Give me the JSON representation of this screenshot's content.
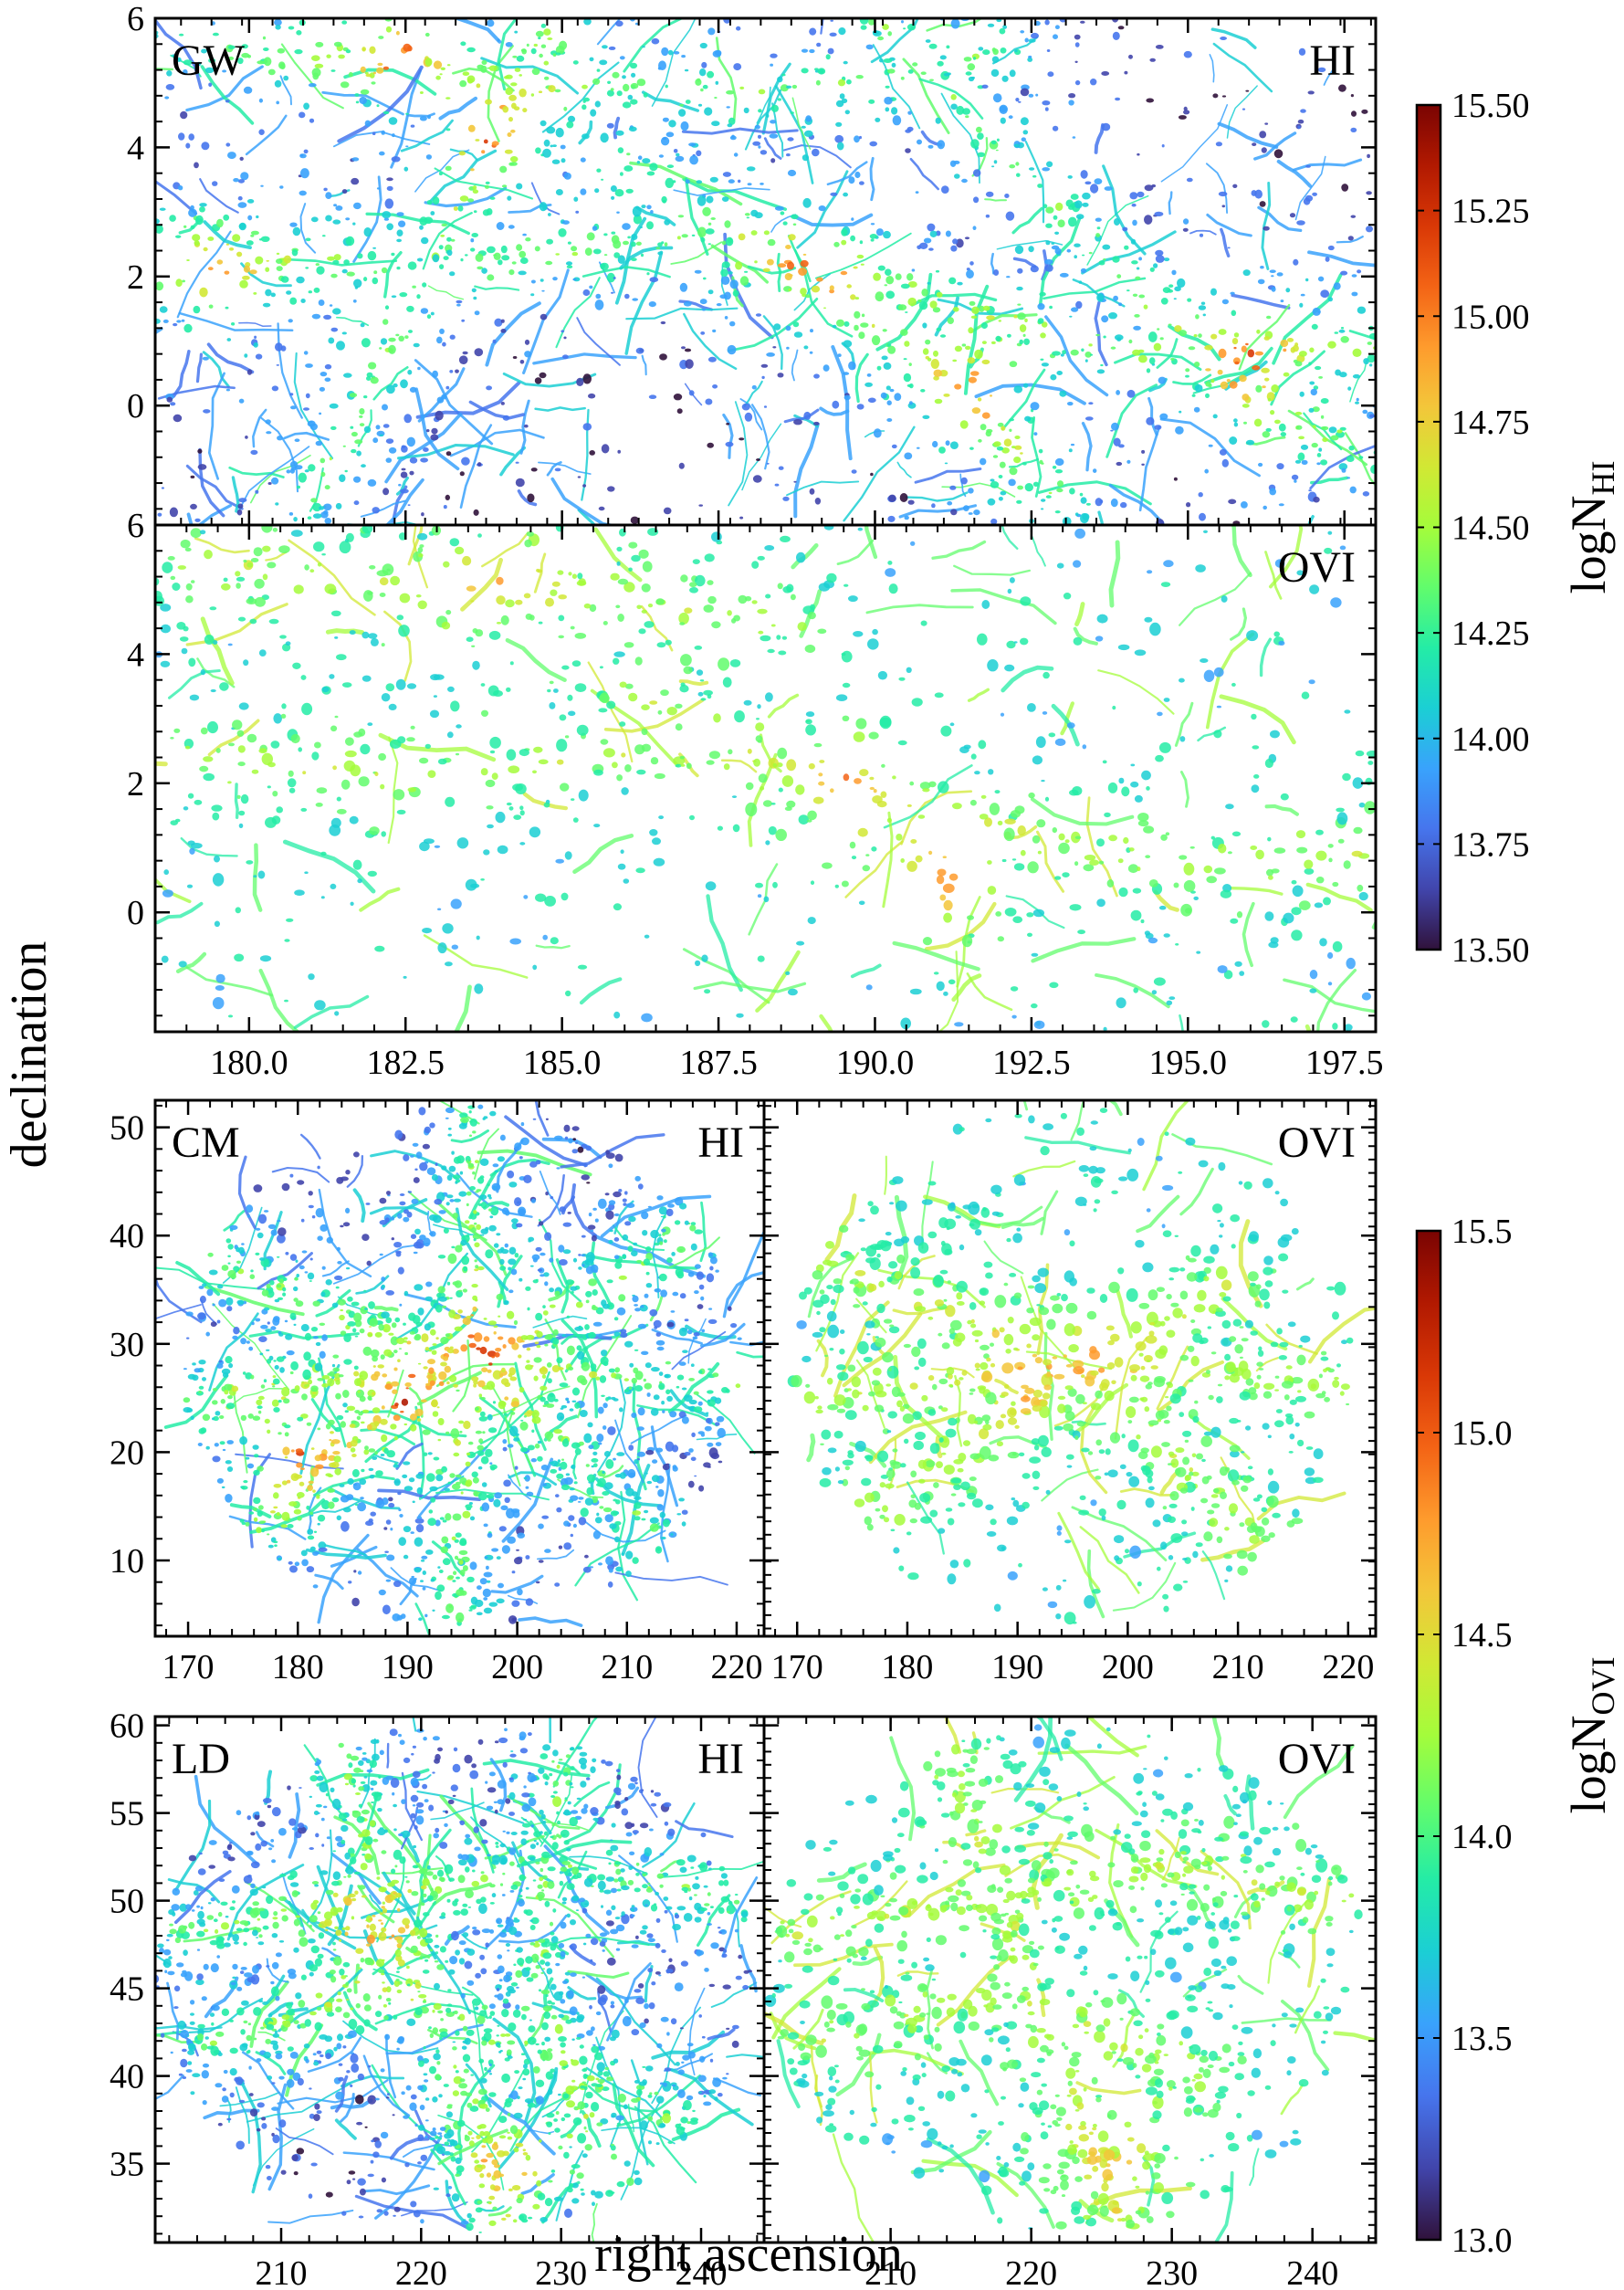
{
  "figure": {
    "ylabel": "declination",
    "xlabel": "right ascension"
  },
  "colorbars": [
    {
      "id": "hi",
      "label_main": "logN",
      "label_sub": "HI",
      "range": [
        13.5,
        15.5
      ],
      "ticks": [
        "13.50",
        "13.75",
        "14.00",
        "14.25",
        "14.50",
        "14.75",
        "15.00",
        "15.25",
        "15.50"
      ],
      "tick_values": [
        13.5,
        13.75,
        14.0,
        14.25,
        14.5,
        14.75,
        15.0,
        15.25,
        15.5
      ]
    },
    {
      "id": "ovi",
      "label_main": "logN",
      "label_sub": "OVI",
      "range": [
        13.0,
        15.5
      ],
      "ticks": [
        "13.0",
        "13.5",
        "14.0",
        "14.5",
        "15.0",
        "15.5"
      ],
      "tick_values": [
        13.0,
        13.5,
        14.0,
        14.5,
        15.0,
        15.5
      ]
    }
  ],
  "colormap": [
    "#30123b",
    "#4145ab",
    "#4675ed",
    "#39a2fc",
    "#1bcfd4",
    "#24eca6",
    "#61fc6c",
    "#a4fc3b",
    "#d1e834",
    "#f3c63a",
    "#fe9b2d",
    "#f36315",
    "#d93806",
    "#b11901",
    "#7a0402"
  ],
  "chart_data": [
    {
      "type": "heatmap",
      "panel": "GW-HI",
      "labels": [
        "GW",
        "HI"
      ],
      "colorbar": "hi",
      "xlim": [
        178.5,
        198.0
      ],
      "ylim": [
        -1.85,
        6.0
      ],
      "xticks": [],
      "yticks": [
        "6",
        "4",
        "2",
        "0"
      ],
      "ytick_values": [
        6,
        4,
        2,
        0
      ],
      "filaments": [
        [
          [
            178.5,
            2.4
          ],
          [
            183.0,
            2.1
          ],
          [
            187.0,
            2.6
          ],
          [
            190.0,
            1.9
          ],
          [
            194.0,
            0.8
          ],
          [
            198.0,
            0.9
          ]
        ],
        [
          [
            179.0,
            5.6
          ],
          [
            184.0,
            5.0
          ],
          [
            188.5,
            4.8
          ],
          [
            192.0,
            5.5
          ]
        ],
        [
          [
            181.0,
            -1.5
          ],
          [
            182.5,
            1.5
          ],
          [
            184.0,
            4.5
          ],
          [
            185.0,
            6.0
          ]
        ],
        [
          [
            186.0,
            3.6
          ],
          [
            189.0,
            2.0
          ],
          [
            191.5,
            0.2
          ],
          [
            193.0,
            -1.6
          ]
        ],
        [
          [
            190.0,
            6.0
          ],
          [
            193.0,
            3.0
          ],
          [
            196.0,
            0.0
          ],
          [
            198.0,
            -0.8
          ]
        ]
      ],
      "hotspots": [
        [
          184.0,
          4.2
        ],
        [
          189.0,
          2.2
        ],
        [
          191.5,
          0.4
        ],
        [
          179.5,
          1.9
        ],
        [
          196.0,
          0.7
        ],
        [
          182.5,
          5.5
        ]
      ]
    },
    {
      "type": "heatmap",
      "panel": "GW-OVI",
      "labels": [
        "OVI"
      ],
      "colorbar": "hi",
      "xlim": [
        178.5,
        198.0
      ],
      "ylim": [
        -1.85,
        6.0
      ],
      "xticks": [
        "180.0",
        "182.5",
        "185.0",
        "187.5",
        "190.0",
        "192.5",
        "195.0",
        "197.5"
      ],
      "xtick_values": [
        180.0,
        182.5,
        185.0,
        187.5,
        190.0,
        192.5,
        195.0,
        197.5
      ],
      "yticks": [
        "6",
        "4",
        "2",
        "0"
      ],
      "ytick_values": [
        6,
        4,
        2,
        0
      ],
      "filaments": [
        [
          [
            178.5,
            2.4
          ],
          [
            183.0,
            2.1
          ],
          [
            187.0,
            2.6
          ],
          [
            190.0,
            1.9
          ],
          [
            194.0,
            0.8
          ],
          [
            198.0,
            0.9
          ]
        ],
        [
          [
            179.0,
            5.4
          ],
          [
            184.0,
            5.0
          ],
          [
            188.5,
            4.6
          ]
        ],
        [
          [
            186.0,
            3.4
          ],
          [
            189.0,
            2.0
          ],
          [
            191.5,
            0.4
          ]
        ]
      ],
      "hotspots": [
        [
          184.0,
          5.2
        ],
        [
          191.0,
          0.4
        ],
        [
          189.5,
          2.2
        ]
      ]
    },
    {
      "type": "heatmap",
      "panel": "CM-HI",
      "labels": [
        "CM",
        "HI"
      ],
      "colorbar": "ovi",
      "xlim": [
        167.0,
        222.5
      ],
      "ylim": [
        3.0,
        52.5
      ],
      "xticks": [
        "170",
        "180",
        "190",
        "200",
        "210",
        "220"
      ],
      "xtick_values": [
        170,
        180,
        190,
        200,
        210,
        220
      ],
      "yticks": [
        "50",
        "40",
        "30",
        "20",
        "10"
      ],
      "ytick_values": [
        50,
        40,
        30,
        20,
        10
      ],
      "disc": {
        "center": [
          195.0,
          28.0
        ],
        "radius": [
          25.5,
          24.0
        ]
      },
      "filaments": [
        [
          [
            172.0,
            38.0
          ],
          [
            185.0,
            32.0
          ],
          [
            196.0,
            28.0
          ],
          [
            210.0,
            36.0
          ],
          [
            220.0,
            44.0
          ]
        ],
        [
          [
            175.0,
            12.0
          ],
          [
            186.0,
            22.0
          ],
          [
            196.0,
            28.0
          ],
          [
            205.0,
            20.0
          ],
          [
            214.0,
            10.0
          ]
        ],
        [
          [
            196.0,
            50.0
          ],
          [
            196.0,
            28.0
          ],
          [
            194.0,
            6.0
          ]
        ],
        [
          [
            170.0,
            25.0
          ],
          [
            196.0,
            28.0
          ],
          [
            221.0,
            26.0
          ]
        ]
      ],
      "hotspots": [
        [
          197.0,
          29.5
        ],
        [
          190.0,
          25.0
        ],
        [
          180.0,
          20.0
        ]
      ]
    },
    {
      "type": "heatmap",
      "panel": "CM-OVI",
      "labels": [
        "OVI"
      ],
      "colorbar": "ovi",
      "xlim": [
        167.0,
        222.5
      ],
      "ylim": [
        3.0,
        52.5
      ],
      "xticks": [
        "170",
        "180",
        "190",
        "200",
        "210",
        "220"
      ],
      "xtick_values": [
        170,
        180,
        190,
        200,
        210,
        220
      ],
      "yticks": [],
      "disc": {
        "center": [
          195.0,
          28.0
        ],
        "radius": [
          25.5,
          24.0
        ]
      },
      "filaments": [
        [
          [
            172.0,
            38.0
          ],
          [
            185.0,
            32.0
          ],
          [
            196.0,
            28.0
          ],
          [
            210.0,
            36.0
          ]
        ],
        [
          [
            176.0,
            14.0
          ],
          [
            196.0,
            28.0
          ],
          [
            212.0,
            12.0
          ]
        ],
        [
          [
            170.0,
            25.0
          ],
          [
            196.0,
            28.0
          ],
          [
            221.0,
            26.0
          ]
        ]
      ],
      "hotspots": [
        [
          197.0,
          29.5
        ],
        [
          191.0,
          27.0
        ]
      ]
    },
    {
      "type": "heatmap",
      "panel": "LD-HI",
      "labels": [
        "LD",
        "HI"
      ],
      "colorbar": "ovi",
      "xlim": [
        201.0,
        244.5
      ],
      "ylim": [
        30.5,
        60.5
      ],
      "xticks": [
        "210",
        "220",
        "230",
        "240"
      ],
      "xtick_values": [
        210,
        220,
        230,
        240
      ],
      "yticks": [
        "60",
        "55",
        "50",
        "45",
        "40",
        "35"
      ],
      "ytick_values": [
        60,
        55,
        50,
        45,
        40,
        35
      ],
      "disc": {
        "center": [
          222.5,
          45.5
        ],
        "radius": [
          21.5,
          14.5
        ]
      },
      "filaments": [
        [
          [
            203.0,
            48.0
          ],
          [
            215.0,
            50.0
          ],
          [
            230.0,
            52.0
          ],
          [
            244.0,
            50.0
          ]
        ],
        [
          [
            205.0,
            42.0
          ],
          [
            218.0,
            45.0
          ],
          [
            232.0,
            40.0
          ],
          [
            240.0,
            37.0
          ]
        ],
        [
          [
            214.0,
            59.0
          ],
          [
            220.0,
            45.0
          ],
          [
            226.0,
            32.0
          ]
        ],
        [
          [
            230.0,
            58.0
          ],
          [
            228.0,
            45.0
          ],
          [
            234.0,
            34.0
          ]
        ]
      ],
      "hotspots": [
        [
          227.0,
          35.0
        ],
        [
          216.0,
          48.0
        ]
      ]
    },
    {
      "type": "heatmap",
      "panel": "LD-OVI",
      "labels": [
        "OVI"
      ],
      "colorbar": "ovi",
      "xlim": [
        201.0,
        244.5
      ],
      "ylim": [
        30.5,
        60.5
      ],
      "xticks": [
        "210",
        "220",
        "230",
        "240"
      ],
      "xtick_values": [
        210,
        220,
        230,
        240
      ],
      "yticks": [],
      "disc": {
        "center": [
          222.5,
          45.5
        ],
        "radius": [
          21.5,
          14.5
        ]
      },
      "filaments": [
        [
          [
            203.0,
            48.0
          ],
          [
            215.0,
            50.0
          ],
          [
            230.0,
            52.0
          ],
          [
            244.0,
            50.0
          ]
        ],
        [
          [
            205.0,
            42.0
          ],
          [
            218.0,
            45.0
          ],
          [
            232.0,
            40.0
          ]
        ],
        [
          [
            214.0,
            59.0
          ],
          [
            220.0,
            45.0
          ],
          [
            226.0,
            32.0
          ]
        ]
      ],
      "hotspots": [
        [
          227.0,
          35.0
        ]
      ]
    }
  ]
}
